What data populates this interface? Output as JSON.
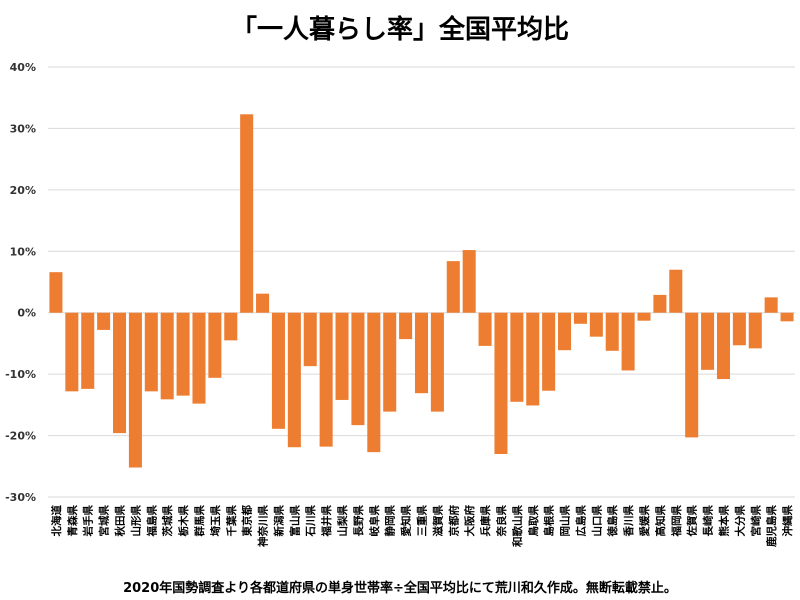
{
  "chart_data": {
    "type": "bar",
    "title": "「一人暮らし率」全国平均比",
    "footnote": "2020年国勢調査より各都道府県の単身世帯率÷全国平均比にて荒川和久作成。無断転載禁止。",
    "ylim": [
      -30,
      40
    ],
    "ytick_values": [
      -30,
      -20,
      -10,
      0,
      10,
      20,
      30,
      40
    ],
    "ytick_labels": [
      "-30%",
      "-20%",
      "-10%",
      "0%",
      "10%",
      "20%",
      "30%",
      "40%"
    ],
    "grid": true,
    "bar_color": "#ed7d31",
    "gridline_color": "#d9d9d9",
    "categories": [
      "北海道",
      "青森県",
      "岩手県",
      "宮城県",
      "秋田県",
      "山形県",
      "福島県",
      "茨城県",
      "栃木県",
      "群馬県",
      "埼玉県",
      "千葉県",
      "東京都",
      "神奈川県",
      "新潟県",
      "富山県",
      "石川県",
      "福井県",
      "山梨県",
      "長野県",
      "岐阜県",
      "静岡県",
      "愛知県",
      "三重県",
      "滋賀県",
      "京都府",
      "大阪府",
      "兵庫県",
      "奈良県",
      "和歌山県",
      "鳥取県",
      "島根県",
      "岡山県",
      "広島県",
      "山口県",
      "徳島県",
      "香川県",
      "愛媛県",
      "高知県",
      "福岡県",
      "佐賀県",
      "長崎県",
      "熊本県",
      "大分県",
      "宮崎県",
      "鹿児島県",
      "沖縄県"
    ],
    "values": [
      6.6,
      -12.8,
      -12.4,
      -2.8,
      -19.6,
      -25.2,
      -12.8,
      -14.1,
      -13.5,
      -14.8,
      -10.6,
      -4.5,
      32.3,
      3.1,
      -18.9,
      -21.9,
      -8.7,
      -21.8,
      -14.2,
      -18.3,
      -22.7,
      -16.1,
      -4.3,
      -13.1,
      -16.1,
      8.4,
      10.2,
      -5.4,
      -23.0,
      -14.5,
      -15.1,
      -12.7,
      -6.1,
      -1.8,
      -3.9,
      -6.2,
      -9.4,
      -1.3,
      2.9,
      7.0,
      -20.3,
      -9.3,
      -10.8,
      -5.3,
      -5.8,
      2.5,
      -1.4
    ]
  }
}
